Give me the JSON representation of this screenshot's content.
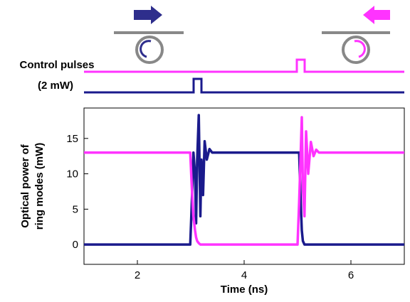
{
  "chart_data": {
    "type": "line",
    "annotations": [
      "Control pulses",
      "(2 mW)"
    ],
    "xlabel": "Time (ns)",
    "ylabel": [
      "Optical power of",
      "ring modes (mW)"
    ],
    "x": [
      1,
      2.99,
      3.02,
      3.05,
      3.08,
      3.1,
      3.12,
      3.15,
      3.18,
      3.2,
      3.23,
      3.26,
      3.3,
      3.35,
      3.4,
      3.5,
      4,
      5.0,
      5.03,
      5.06,
      5.08,
      5.1,
      5.13,
      5.16,
      5.2,
      5.25,
      5.3,
      5.35,
      5.4,
      5.5,
      6,
      7
    ],
    "series": [
      {
        "color": "#1a1a8c",
        "values": [
          0,
          0,
          6,
          13,
          10,
          3,
          12,
          18.3,
          4,
          12,
          7,
          14.6,
          12,
          13.5,
          13,
          13,
          13,
          13,
          13,
          6,
          2,
          0.5,
          0,
          0,
          0,
          0,
          0,
          0,
          0,
          0,
          0,
          0
        ]
      },
      {
        "color": "#ff33ff",
        "values": [
          13,
          13,
          8,
          4,
          2,
          1,
          0.5,
          0.2,
          0,
          0,
          0,
          0,
          0,
          0,
          0,
          0,
          0,
          0,
          6,
          13,
          18,
          8,
          4,
          16,
          10,
          14.5,
          12.5,
          13.4,
          13,
          13,
          13,
          13
        ]
      }
    ],
    "xlim": [
      1,
      7
    ],
    "xticks": [
      2,
      4,
      6
    ],
    "ylim": [
      -2.8,
      19.3
    ],
    "yticks": [
      0,
      5,
      10,
      15
    ]
  }
}
